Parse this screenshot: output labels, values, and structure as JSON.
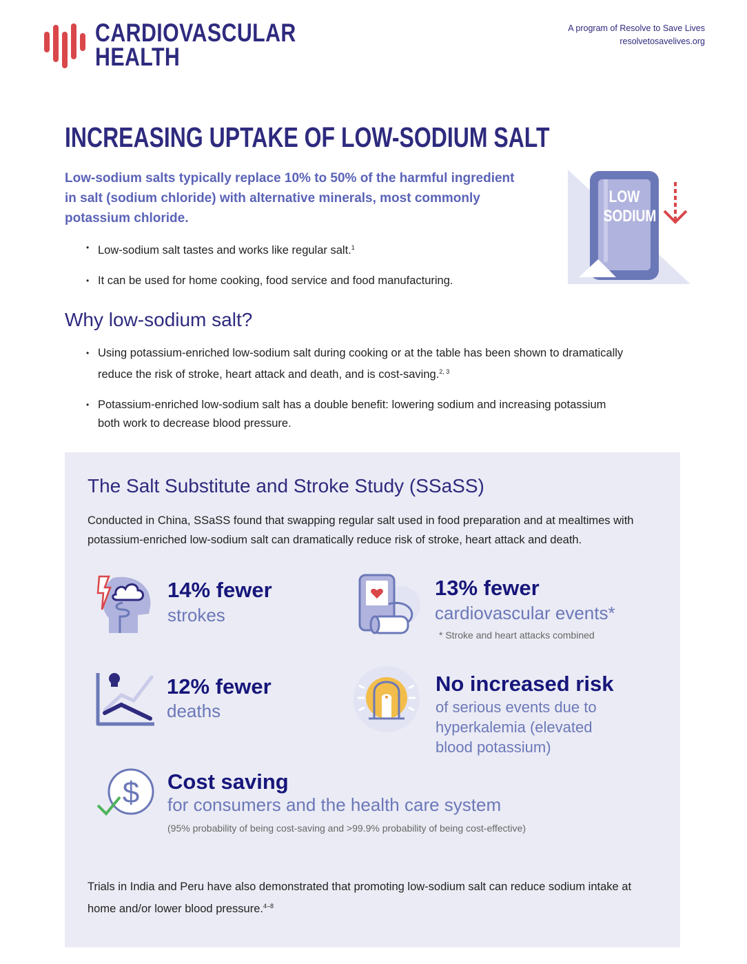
{
  "header": {
    "logo_line1": "CARDIOVASCULAR",
    "logo_line2": "HEALTH",
    "program": "A program of Resolve to Save Lives",
    "url": "resolvetosavelives.org"
  },
  "title": "INCREASING UPTAKE OF LOW-SODIUM SALT",
  "intro": "Low-sodium salts typically replace 10% to 50% of the harmful ingredient in salt (sodium chloride) with alternative minerals, most commonly potassium chloride.",
  "badge": {
    "line1": "LOW",
    "line2": "SODIUM"
  },
  "bullets1": [
    {
      "text": "Low-sodium salt tastes and works like regular salt.",
      "sup": "1"
    },
    {
      "text": "It can be used for home cooking, food service and food manufacturing.",
      "sup": ""
    }
  ],
  "why": {
    "heading": "Why low-sodium salt?",
    "bullets": [
      {
        "text": "Using potassium-enriched low-sodium salt during cooking or at the table has been shown to dramatically reduce the risk of stroke, heart attack and death, and is cost-saving.",
        "sup": "2, 3"
      },
      {
        "text": "Potassium-enriched low-sodium salt has a double benefit: lowering sodium and increasing potassium both work to decrease blood pressure.",
        "sup": ""
      }
    ]
  },
  "study": {
    "heading": "The Salt Substitute and Stroke Study (SSaSS)",
    "desc": "Conducted in China, SSaSS found that swapping regular salt used in food preparation and at mealtimes with potassium-enriched low-sodium salt can dramatically reduce risk of stroke, heart attack and death.",
    "stats": [
      {
        "title": "14% fewer",
        "sub": "strokes",
        "icon": "brain-stroke-icon"
      },
      {
        "title": "13% fewer",
        "sub": "cardiovascular events*",
        "note": "* Stroke and heart attacks combined",
        "icon": "blood-pressure-monitor-icon"
      },
      {
        "title": "12% fewer",
        "sub": "deaths",
        "icon": "death-chart-icon"
      },
      {
        "title": "No increased risk",
        "sub": "of serious events due to hyperkalemia (elevated blood potassium)",
        "icon": "alarm-light-icon"
      },
      {
        "title": "Cost saving",
        "sub": "for consumers and the health care system",
        "note": "(95% probability of being cost-saving and >99.9% probability of being cost-effective)",
        "icon": "dollar-check-icon"
      }
    ],
    "footer": "Trials in India and Peru have also demonstrated that promoting low-sodium salt can reduce sodium intake at home and/or lower blood pressure.",
    "footer_sup": "4–8"
  },
  "colors": {
    "brand": "#2e2a7e",
    "accent_red": "#d9474a",
    "intro": "#5b63b7",
    "box_bg": "#ebebf5"
  }
}
